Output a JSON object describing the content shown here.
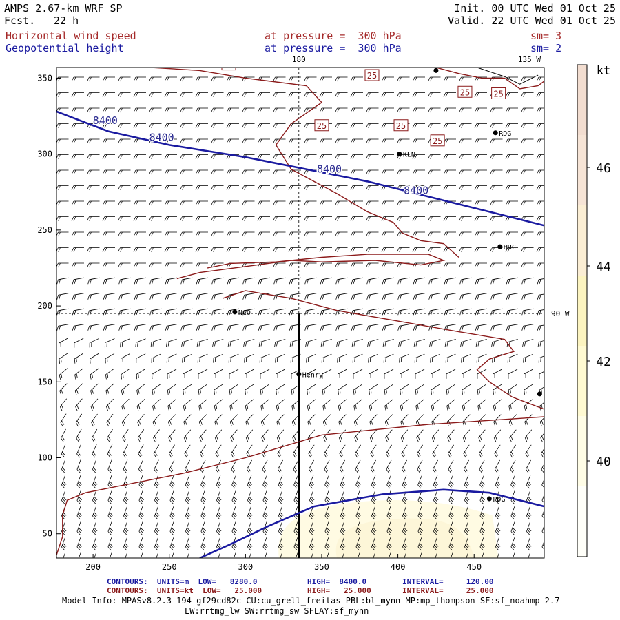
{
  "header": {
    "model": "AMPS 2.67-km WRF SP",
    "fcst_label": "Fcst.",
    "fcst_value": "22 h",
    "init": "Init. 00 UTC Wed 01 Oct 25",
    "valid": "Valid. 22 UTC Wed 01 Oct 25",
    "field1": "Horizontal wind speed",
    "field1_level": "at pressure =  300 hPa",
    "field1_sm": "sm= 3",
    "field2": "Geopotential height",
    "field2_level": "at pressure =  300 hPa",
    "field2_sm": "sm= 2"
  },
  "chart_data": {
    "type": "contour-map",
    "xaxis": {
      "ticks": [
        200,
        250,
        300,
        350,
        400,
        450
      ],
      "range": [
        176,
        496
      ]
    },
    "yaxis": {
      "ticks": [
        50,
        100,
        150,
        200,
        250,
        300,
        350
      ],
      "range": [
        34,
        357
      ]
    },
    "meridian_labels": {
      "top_180": "180",
      "top_135w": "135 W",
      "right_90w": "90 W"
    },
    "cross_point": {
      "x": 335,
      "y": 195
    },
    "cross_section_line": {
      "x": 335,
      "y_from": 34,
      "y_to": 195
    },
    "height_contours": {
      "units": "m",
      "color": "#1a1aa0",
      "label": "8400",
      "lines": [
        [
          [
            176,
            328
          ],
          [
            210,
            315
          ],
          [
            250,
            306
          ],
          [
            300,
            298
          ],
          [
            335,
            291
          ],
          [
            380,
            282
          ],
          [
            420,
            272
          ],
          [
            460,
            262
          ],
          [
            496,
            253
          ]
        ],
        [
          [
            270,
            34
          ],
          [
            290,
            43
          ],
          [
            315,
            55
          ],
          [
            345,
            68
          ],
          [
            390,
            76
          ],
          [
            430,
            79
          ],
          [
            460,
            77
          ],
          [
            496,
            68
          ]
        ]
      ],
      "labels": [
        [
          208,
          322
        ],
        [
          245,
          311
        ],
        [
          355,
          290
        ],
        [
          412,
          276
        ]
      ]
    },
    "speed_contours": {
      "units": "kt",
      "color": "#8b1a1a",
      "label": "25",
      "lines": [
        [
          [
            176,
            36
          ],
          [
            180,
            48
          ],
          [
            180,
            62
          ],
          [
            183,
            72
          ],
          [
            195,
            77
          ],
          [
            220,
            82
          ],
          [
            260,
            90
          ],
          [
            300,
            100
          ],
          [
            350,
            115
          ],
          [
            420,
            122
          ],
          [
            496,
            127
          ]
        ],
        [
          [
            255,
            218
          ],
          [
            270,
            222
          ],
          [
            300,
            226
          ],
          [
            330,
            230
          ],
          [
            350,
            229
          ],
          [
            385,
            230
          ],
          [
            415,
            227
          ],
          [
            430,
            230
          ],
          [
            420,
            234
          ],
          [
            380,
            234
          ],
          [
            350,
            232
          ],
          [
            320,
            229
          ],
          [
            290,
            228
          ],
          [
            275,
            225
          ]
        ],
        [
          [
            238,
            357
          ],
          [
            270,
            355
          ],
          [
            300,
            350
          ],
          [
            340,
            345
          ],
          [
            350,
            334
          ],
          [
            330,
            320
          ],
          [
            320,
            306
          ],
          [
            330,
            290
          ],
          [
            360,
            274
          ],
          [
            380,
            262
          ],
          [
            397,
            255
          ],
          [
            403,
            248
          ],
          [
            415,
            243
          ],
          [
            430,
            241
          ],
          [
            440,
            232
          ]
        ],
        [
          [
            285,
            205
          ],
          [
            300,
            210
          ],
          [
            330,
            205
          ],
          [
            360,
            197
          ],
          [
            400,
            190
          ],
          [
            440,
            183
          ],
          [
            470,
            178
          ],
          [
            476,
            170
          ],
          [
            460,
            165
          ],
          [
            452,
            158
          ],
          [
            460,
            150
          ],
          [
            475,
            140
          ],
          [
            496,
            132
          ]
        ],
        [
          [
            425,
            357
          ],
          [
            440,
            353
          ],
          [
            455,
            350
          ],
          [
            470,
            350
          ],
          [
            480,
            343
          ],
          [
            492,
            345
          ],
          [
            496,
            348
          ]
        ]
      ],
      "labels": [
        [
          200,
          362
        ],
        [
          242,
          387
        ],
        [
          289,
          359
        ],
        [
          307,
          470
        ],
        [
          356,
          431
        ],
        [
          359,
          444
        ],
        [
          422,
          476
        ],
        [
          383,
          352
        ],
        [
          402,
          319
        ],
        [
          350,
          319
        ],
        [
          426,
          309
        ],
        [
          444,
          341
        ],
        [
          466,
          340
        ]
      ]
    },
    "stations": [
      {
        "name": "Henry",
        "x": 335,
        "y": 155
      },
      {
        "name": "KLN",
        "x": 401,
        "y": 300
      },
      {
        "name": "RDG",
        "x": 464,
        "y": 314
      },
      {
        "name": "HRC",
        "x": 467,
        "y": 239
      },
      {
        "name": "NCO",
        "x": 293,
        "y": 196
      },
      {
        "name": "PDG",
        "x": 460,
        "y": 73
      },
      {
        "name": "",
        "x": 425,
        "y": 355
      },
      {
        "name": "",
        "x": 493,
        "y": 142
      }
    ],
    "shading": {
      "region": "lower-center",
      "threshold_kt": 40,
      "color": "#fffbe3"
    },
    "colorbar": {
      "unit": "kt",
      "ticks": [
        40,
        42,
        44,
        46
      ],
      "colors": [
        "#fffff9",
        "#fffde6",
        "#fffad2",
        "#fcf4c0",
        "#fbeed4",
        "#f6e4d6",
        "#f2ddd0"
      ]
    }
  },
  "footer": {
    "c1_label": "CONTOURS:  UNITS=m  LOW=   8280.0",
    "c1_high": "HIGH=  8400.0",
    "c1_interval": "INTERVAL=     120.00",
    "c2_label": "CONTOURS:  UNITS=kt  LOW=   25.000",
    "c2_high": "HIGH=   25.000",
    "c2_interval": "INTERVAL=     25.000",
    "model_info": "Model Info: MPASv8.2.3-194-gf29cd82c CU:cu_grell_freitas PBL:bl_mynn MP:mp_thompson SF:sf_noahmp 2.7",
    "model_info2": "LW:rrtmg_lw SW:rrtmg_sw SFLAY:sf_mynn"
  }
}
